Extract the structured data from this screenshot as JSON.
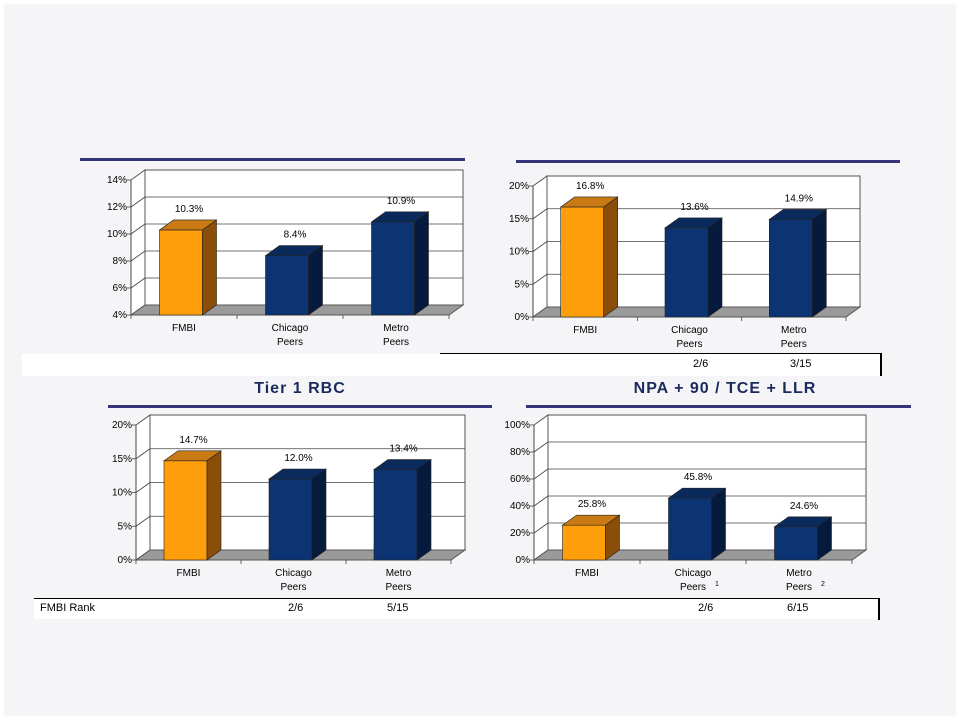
{
  "colors": {
    "fmbi_front": "#ff9e0b",
    "fmbi_top": "#c97a14",
    "fmbi_side": "#8a4e08",
    "peer_front": "#0d3472",
    "peer_top": "#0b2a5c",
    "peer_side": "#061a3e",
    "floor": "#9a9a9a",
    "divider": "#33357a"
  },
  "rank_row": {
    "label": "FMBI Rank",
    "top_chart2": [
      "2/6",
      "3/15"
    ],
    "bottom_chart3": [
      "2/6",
      "5/15"
    ],
    "bottom_chart4": [
      "2/6",
      "6/15"
    ]
  },
  "chart_data": [
    {
      "type": "bar",
      "title": "",
      "categories": [
        "FMBI",
        "Chicago Peers",
        "Metro Peers"
      ],
      "values": [
        10.3,
        8.4,
        10.9
      ],
      "data_labels": [
        "10.3%",
        "8.4%",
        "10.9%"
      ],
      "ylim": [
        4,
        14
      ],
      "yticks": [
        "4%",
        "6%",
        "8%",
        "10%",
        "12%",
        "14%"
      ],
      "grid": true
    },
    {
      "type": "bar",
      "title": "",
      "categories": [
        "FMBI",
        "Chicago Peers",
        "Metro Peers"
      ],
      "values": [
        16.8,
        13.6,
        14.9
      ],
      "data_labels": [
        "16.8%",
        "13.6%",
        "14.9%"
      ],
      "ylim": [
        0,
        20
      ],
      "yticks": [
        "0%",
        "5%",
        "10%",
        "15%",
        "20%"
      ],
      "grid": true
    },
    {
      "type": "bar",
      "title": "Tier 1 RBC",
      "categories": [
        "FMBI",
        "Chicago Peers",
        "Metro Peers"
      ],
      "values": [
        14.7,
        12.0,
        13.4
      ],
      "data_labels": [
        "14.7%",
        "12.0%",
        "13.4%"
      ],
      "ylim": [
        0,
        20
      ],
      "yticks": [
        "0%",
        "5%",
        "10%",
        "15%",
        "20%"
      ],
      "grid": true
    },
    {
      "type": "bar",
      "title": "NPA + 90 / TCE + LLR",
      "categories": [
        "FMBI",
        "Chicago Peers",
        "Metro Peers"
      ],
      "footnotes": [
        "",
        "1",
        "2"
      ],
      "values": [
        25.8,
        45.8,
        24.6
      ],
      "data_labels": [
        "25.8%",
        "45.8%",
        "24.6%"
      ],
      "ylim": [
        0,
        100
      ],
      "yticks": [
        "0%",
        "20%",
        "40%",
        "60%",
        "80%",
        "100%"
      ],
      "grid": true
    }
  ]
}
